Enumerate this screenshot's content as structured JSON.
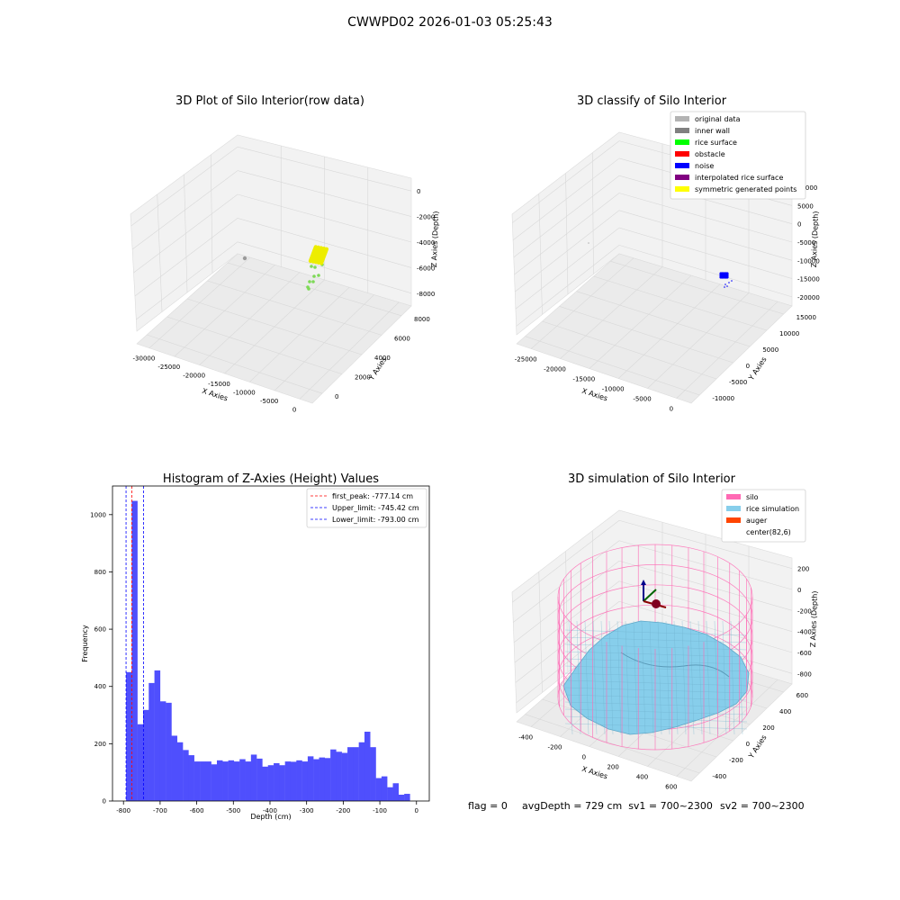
{
  "figure": {
    "suptitle": "CWWPD02 2026-01-03 05:25:43"
  },
  "panel_titles": {
    "raw": "3D Plot of Silo Interior(row data)",
    "classify": "3D classify of Silo Interior",
    "histogram": "Histogram of Z-Axies (Height) Values",
    "simulation": "3D simulation of Silo Interior"
  },
  "axis_labels": {
    "x": "X Axies",
    "y": "Y Axies",
    "z": "Z Axies (Depth)",
    "hist_x": "Depth (cm)",
    "hist_y": "Frequency"
  },
  "status": {
    "flag": "flag = 0",
    "avg": "avgDepth = 729 cm  sv1 = 700~2300",
    "sv2": "sv2 = 700~2300"
  },
  "colors": {
    "histogram_bar": "#4f4ffd",
    "silo": "#ff69b4",
    "rice_simulation": "#87ceeb",
    "auger": "#ff4500",
    "raw_points_green": "#7ed957",
    "raw_points_yellow": "#eded00",
    "noise": "#0000ff",
    "pane": "#f2f2f2"
  },
  "chart_data": [
    {
      "type": "scatter3d",
      "title": "3D Plot of Silo Interior(row data)",
      "xlabel": "X Axies",
      "ylabel": "Y Axies",
      "zlabel": "Z Axies (Depth)",
      "x_ticks": [
        "-30000",
        "-25000",
        "-20000",
        "-15000",
        "-10000",
        "-5000",
        "0"
      ],
      "y_ticks": [
        "0",
        "2000",
        "4000",
        "6000",
        "8000"
      ],
      "z_ticks": [
        "-8000",
        "-6000",
        "-4000",
        "-2000",
        "0"
      ]
    },
    {
      "type": "scatter3d",
      "title": "3D classify of Silo Interior",
      "xlabel": "X Axies",
      "ylabel": "Y Axies",
      "zlabel": "Z Axies (Depth)",
      "x_ticks": [
        "-25000",
        "-20000",
        "-15000",
        "-10000",
        "-5000",
        "0"
      ],
      "y_ticks": [
        "-10000",
        "-5000",
        "0",
        "5000",
        "10000",
        "15000"
      ],
      "z_ticks": [
        "-20000",
        "-15000",
        "-10000",
        "-5000",
        "0",
        "5000",
        "10000"
      ],
      "legend": [
        {
          "label": "original data",
          "color": "#b3b3b3"
        },
        {
          "label": "inner wall",
          "color": "#808080"
        },
        {
          "label": "rice surface",
          "color": "#00ff00"
        },
        {
          "label": "obstacle",
          "color": "#ff0000"
        },
        {
          "label": "noise",
          "color": "#0000ff"
        },
        {
          "label": "interpolated rice surface",
          "color": "#800080"
        },
        {
          "label": "symmetric generated points",
          "color": "#ffff00"
        }
      ]
    },
    {
      "type": "bar",
      "title": "Histogram of Z-Axies (Height) Values",
      "xlabel": "Depth (cm)",
      "ylabel": "Frequency",
      "xlim": [
        -830,
        35
      ],
      "ylim": [
        0,
        1100
      ],
      "x_ticks": [
        -800,
        -700,
        -600,
        -500,
        -400,
        -300,
        -200,
        -100,
        0
      ],
      "y_ticks": [
        0,
        200,
        400,
        600,
        800,
        1000
      ],
      "bin_start": -793,
      "bin_width": 15.5,
      "values": [
        450,
        1048,
        268,
        318,
        412,
        456,
        348,
        343,
        228,
        205,
        178,
        160,
        138,
        138,
        138,
        128,
        142,
        138,
        142,
        138,
        146,
        138,
        162,
        148,
        120,
        125,
        132,
        125,
        138,
        137,
        142,
        138,
        156,
        146,
        152,
        150,
        180,
        172,
        168,
        188,
        188,
        205,
        242,
        188,
        80,
        86,
        48,
        62,
        22,
        25
      ],
      "lines": [
        {
          "label": "first_peak: -777.14 cm",
          "value": -777.14,
          "color": "#ff0000"
        },
        {
          "label": "Upper_limit: -745.42 cm",
          "value": -745.42,
          "color": "#0000ff"
        },
        {
          "label": "Lower_limit: -793.00 cm",
          "value": -793.0,
          "color": "#0000ff"
        }
      ]
    },
    {
      "type": "surface3d",
      "title": "3D simulation of Silo Interior",
      "xlabel": "X Axies",
      "ylabel": "Y Axies",
      "zlabel": "Z Axies (Depth)",
      "x_ticks": [
        "-400",
        "-200",
        "0",
        "200",
        "400",
        "600"
      ],
      "y_ticks": [
        "-400",
        "-200",
        "0",
        "200",
        "400",
        "600"
      ],
      "z_ticks": [
        "-800",
        "-600",
        "-400",
        "-200",
        "0",
        "200"
      ],
      "legend": [
        {
          "label": "silo",
          "color": "#ff69b4"
        },
        {
          "label": "rice simulation",
          "color": "#87ceeb"
        },
        {
          "label": "auger",
          "color": "#ff4500"
        },
        {
          "label": "center(82,6)",
          "color": ""
        }
      ]
    }
  ]
}
